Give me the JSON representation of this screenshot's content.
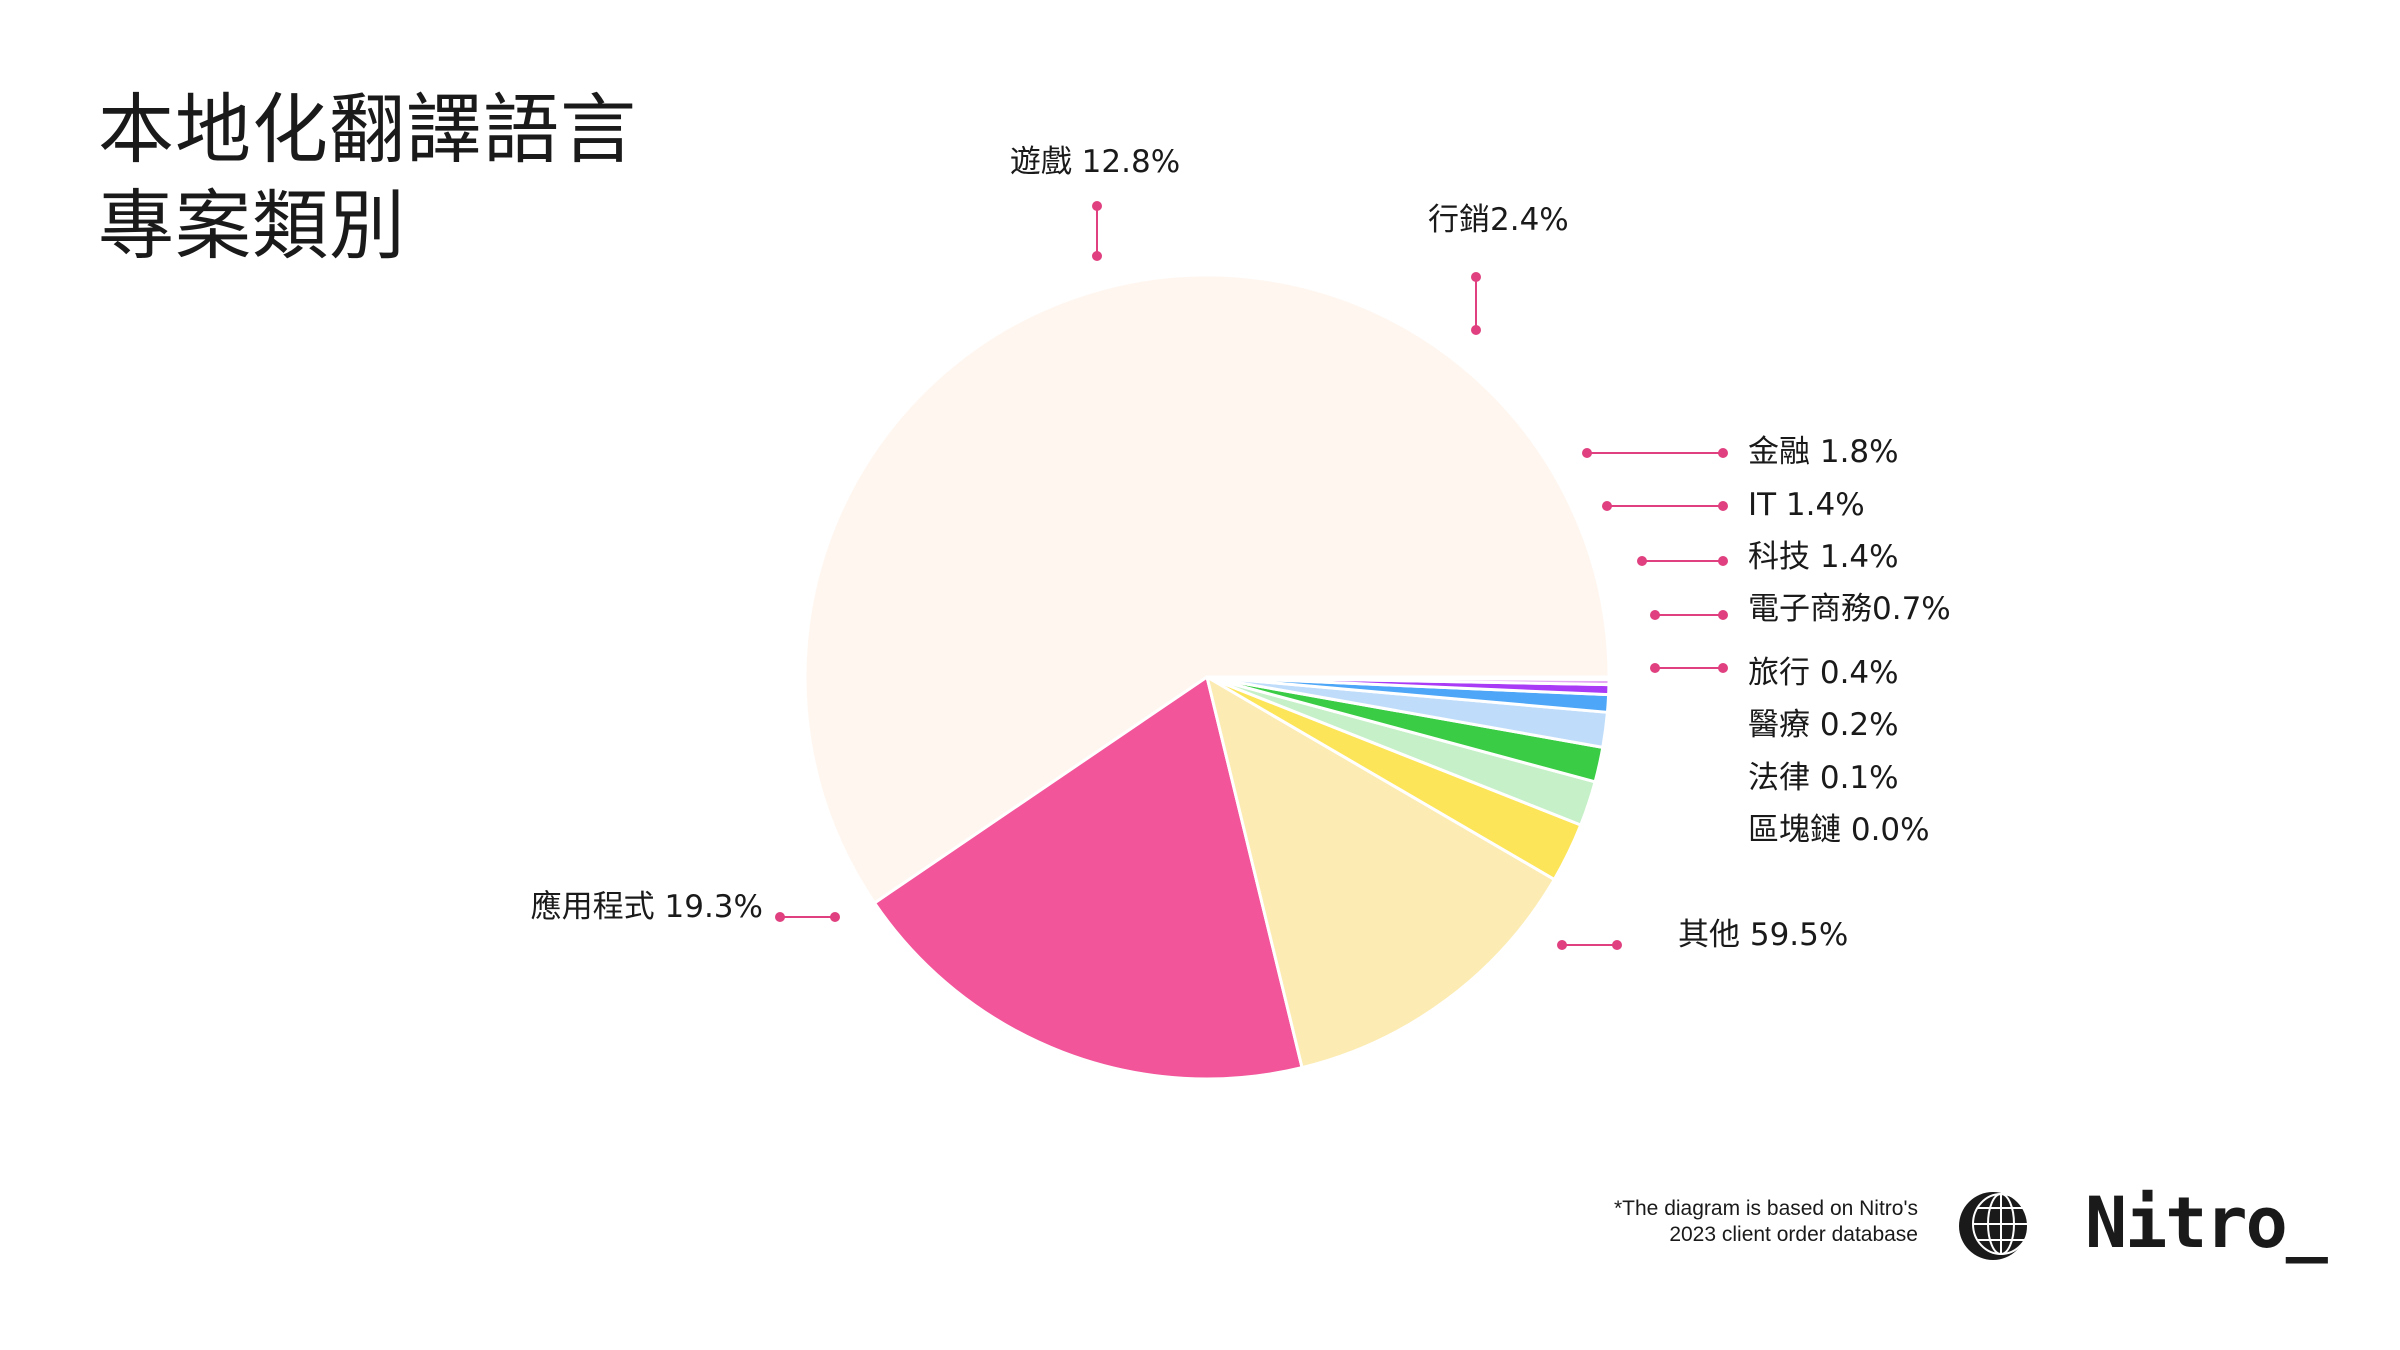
{
  "title_lines": [
    "本地化翻譯語言",
    "專案類別"
  ],
  "chart_data": {
    "type": "pie",
    "title": "本地化翻譯語言專案類別",
    "slices": [
      {
        "label": "其他 59.5%",
        "name": "其他",
        "value": 59.5,
        "color": "#FFF6F0"
      },
      {
        "label": "應用程式 19.3%",
        "name": "應用程式",
        "value": 19.3,
        "color": "#F2559A"
      },
      {
        "label": "遊戲 12.8%",
        "name": "遊戲",
        "value": 12.8,
        "color": "#FCECB3"
      },
      {
        "label": "行銷2.4%",
        "name": "行銷",
        "value": 2.4,
        "color": "#FDE55A"
      },
      {
        "label": "金融 1.8%",
        "name": "金融",
        "value": 1.8,
        "color": "#C6F0C8"
      },
      {
        "label": "IT 1.4%",
        "name": "IT",
        "value": 1.4,
        "color": "#3ACC45"
      },
      {
        "label": "科技 1.4%",
        "name": "科技",
        "value": 1.4,
        "color": "#BFDDFB"
      },
      {
        "label": "電子商務0.7%",
        "name": "電子商務",
        "value": 0.7,
        "color": "#4DA6F7"
      },
      {
        "label": "旅行 0.4%",
        "name": "旅行",
        "value": 0.4,
        "color": "#A93AF5"
      },
      {
        "label": "醫療 0.2%",
        "name": "醫療",
        "value": 0.2,
        "color": "#E4A8F5"
      },
      {
        "label": "法律 0.1%",
        "name": "法律",
        "value": 0.1,
        "color": "#F7B7D2"
      },
      {
        "label": "區塊鏈 0.0%",
        "name": "區塊鏈",
        "value": 0.0,
        "color": "#F2559A"
      }
    ],
    "leader_color": "#E0407F",
    "legend": "none"
  },
  "footnote_lines": [
    "*The diagram is based on Nitro's",
    "2023 client order database"
  ],
  "brand": "Nitro_"
}
